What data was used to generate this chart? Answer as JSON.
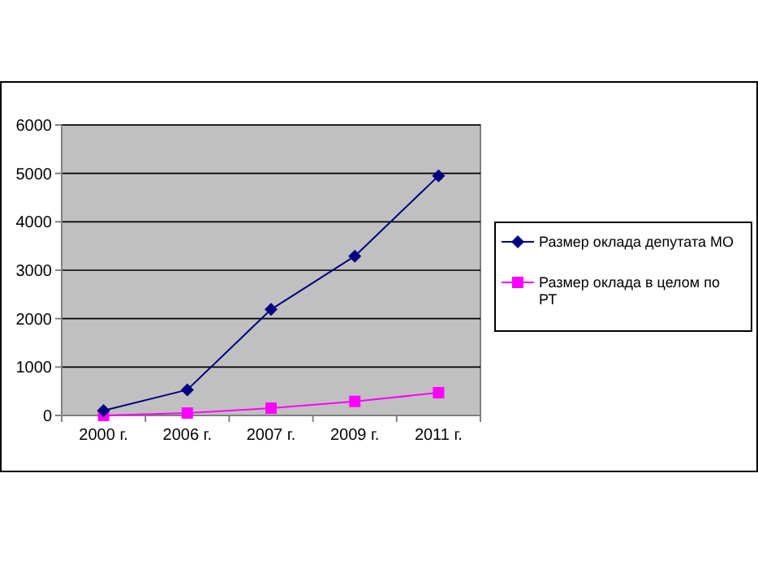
{
  "chart_data": {
    "type": "line",
    "categories": [
      "2000 г.",
      "2006 г.",
      "2007 г.",
      "2009 г.",
      "2011 г."
    ],
    "series": [
      {
        "name": "Размер оклада депутата МО",
        "color": "#000080",
        "marker": "diamond",
        "values": [
          100,
          530,
          2190,
          3290,
          4950
        ]
      },
      {
        "name": "Размер оклада в целом по РТ",
        "color": "#ff00ff",
        "marker": "square",
        "values": [
          0,
          50,
          150,
          290,
          470
        ]
      }
    ],
    "ylim": [
      0,
      6000
    ],
    "yticks": [
      0,
      1000,
      2000,
      3000,
      4000,
      5000,
      6000
    ],
    "grid": "y",
    "legend": "right"
  }
}
